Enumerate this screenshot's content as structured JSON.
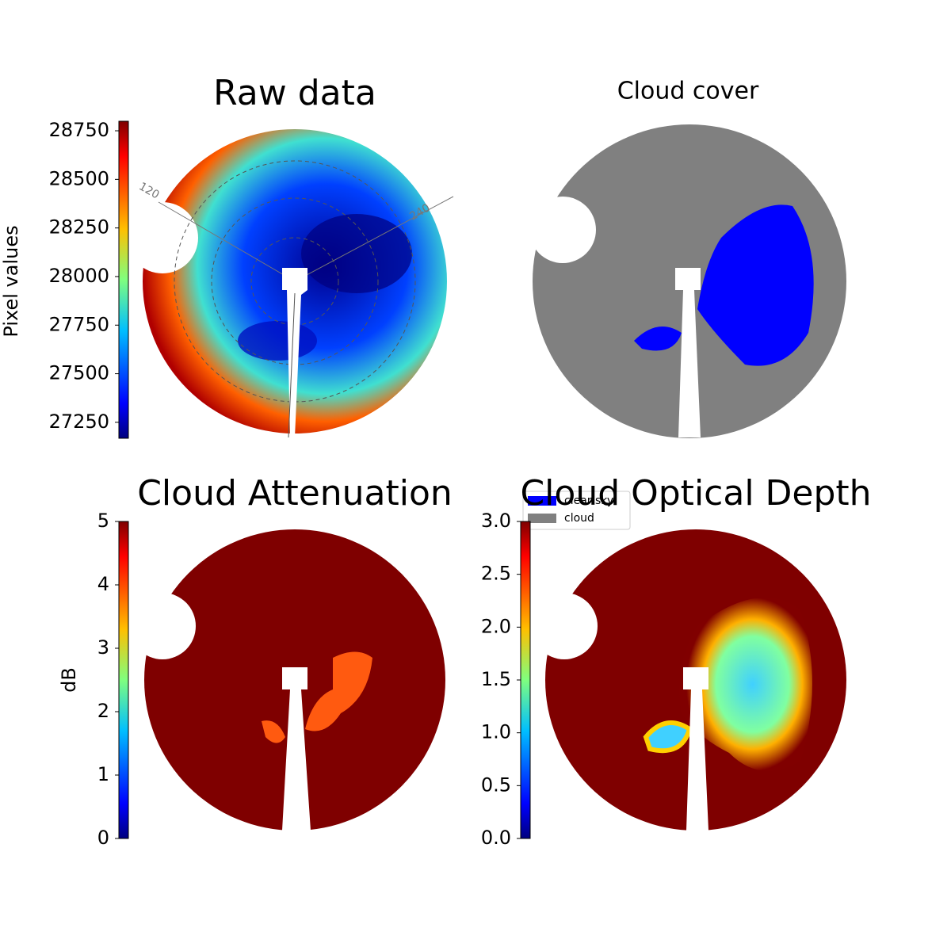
{
  "chart_data": [
    {
      "type": "image",
      "title": "Raw data",
      "colorbar_label": "Pixel values",
      "ylim": [
        27168,
        28799
      ],
      "yticks": [
        27250,
        27500,
        27750,
        28000,
        28250,
        28500,
        28750
      ],
      "annotations": [
        "120",
        "240"
      ]
    },
    {
      "type": "image",
      "title": "Cloud cover",
      "series": [
        {
          "name": "clear sky",
          "color": "#0000ff"
        },
        {
          "name": "cloud",
          "color": "#808080"
        }
      ]
    },
    {
      "type": "image",
      "title": "Cloud Attenuation",
      "colorbar_label": "dB",
      "ylim": [
        0,
        5
      ],
      "yticks": [
        0,
        1,
        2,
        3,
        4,
        5
      ]
    },
    {
      "type": "image",
      "title": "Cloud Optical Depth",
      "ylim": [
        0,
        3
      ],
      "yticks": [
        {
          "value": 0,
          "label": "0.0"
        },
        0.5,
        {
          "value": 1,
          "label": "1.0"
        },
        1.5,
        {
          "value": 2,
          "label": "2.0"
        },
        2.5,
        {
          "value": 3,
          "label": "3.0"
        }
      ]
    }
  ]
}
